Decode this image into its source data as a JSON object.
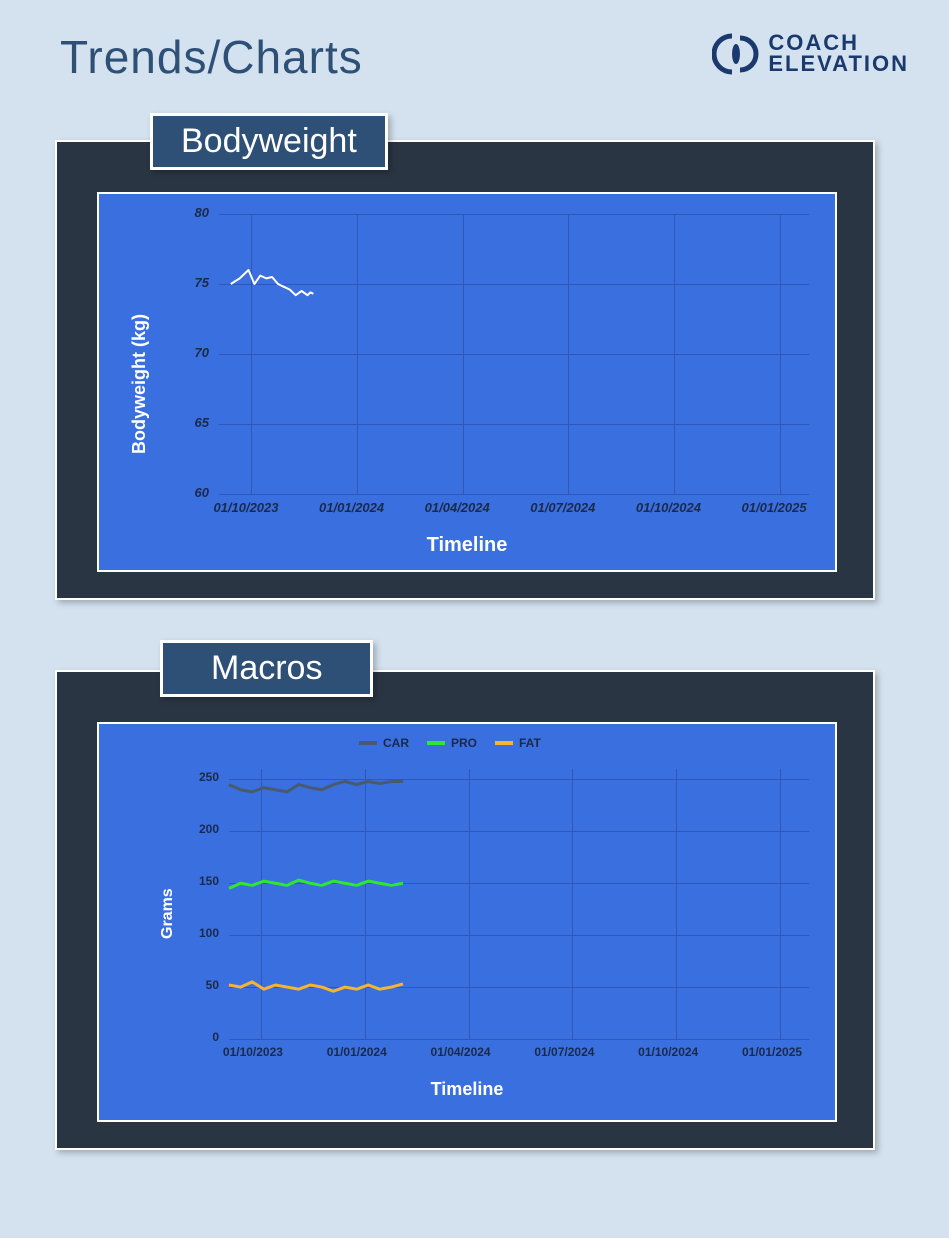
{
  "page": {
    "title": "Trends/Charts",
    "background": "#d4e2f0"
  },
  "logo": {
    "line1": "COACH",
    "line2": "ELEVATION",
    "text_color": "#1a3a6e",
    "icon_color": "#1a3a6e"
  },
  "panel_style": {
    "bg": "#2a3544",
    "border": "#ffffff",
    "title_bg": "#2e5077",
    "title_border": "#ffffff",
    "title_color": "#ffffff",
    "title_fontsize": 34
  },
  "charts": {
    "bodyweight": {
      "title": "Bodyweight",
      "type": "line",
      "plot_bg": "#3a6fe0",
      "grid_color": "#2f57b8",
      "axis_label_color": "#ffffff",
      "tick_color": "#1a2a4a",
      "ylabel": "Bodyweight (kg)",
      "xlabel": "Timeline",
      "ylabel_fontsize": 18,
      "xlabel_fontsize": 20,
      "tick_fontsize": 13,
      "ylim": [
        60,
        80
      ],
      "ytick_step": 5,
      "yticks": [
        60,
        65,
        70,
        75,
        80
      ],
      "x_range": [
        "01/09/2023",
        "01/03/2025"
      ],
      "xticks": [
        "01/10/2023",
        "01/01/2024",
        "01/04/2024",
        "01/07/2024",
        "01/10/2024",
        "01/01/2025"
      ],
      "series": [
        {
          "name": "bodyweight",
          "color": "#ffffff",
          "line_width": 2,
          "x": [
            0.02,
            0.035,
            0.05,
            0.06,
            0.07,
            0.08,
            0.09,
            0.1,
            0.11,
            0.12,
            0.13,
            0.14,
            0.15,
            0.155,
            0.16
          ],
          "y": [
            75.0,
            75.4,
            76.0,
            75.0,
            75.6,
            75.4,
            75.5,
            75.0,
            74.8,
            74.6,
            74.2,
            74.5,
            74.2,
            74.4,
            74.3
          ]
        }
      ]
    },
    "macros": {
      "title": "Macros",
      "type": "line",
      "plot_bg": "#3a6fe0",
      "grid_color": "#2f57b8",
      "axis_label_color": "#ffffff",
      "tick_color": "#1a2a4a",
      "ylabel": "Grams",
      "xlabel": "Timeline",
      "ylabel_fontsize": 16,
      "xlabel_fontsize": 18,
      "tick_fontsize": 12,
      "ylim": [
        0,
        260
      ],
      "yticks": [
        0,
        50,
        100,
        150,
        200,
        250
      ],
      "x_range": [
        "01/09/2023",
        "01/03/2025"
      ],
      "xticks": [
        "01/10/2023",
        "01/01/2024",
        "01/04/2024",
        "01/07/2024",
        "01/10/2024",
        "01/01/2025"
      ],
      "legend": [
        {
          "label": "CAR",
          "color": "#4a5a6e"
        },
        {
          "label": "PRO",
          "color": "#2ee82e"
        },
        {
          "label": "FAT",
          "color": "#f5b52e"
        }
      ],
      "series": [
        {
          "name": "CAR",
          "color": "#4a5a6e",
          "line_width": 3,
          "x": [
            0.0,
            0.02,
            0.04,
            0.06,
            0.08,
            0.1,
            0.12,
            0.14,
            0.16,
            0.18,
            0.2,
            0.22,
            0.24,
            0.26,
            0.28,
            0.3
          ],
          "y": [
            245,
            240,
            238,
            242,
            240,
            238,
            245,
            242,
            240,
            245,
            248,
            245,
            248,
            246,
            248,
            248
          ]
        },
        {
          "name": "PRO",
          "color": "#2ee82e",
          "line_width": 3,
          "x": [
            0.0,
            0.02,
            0.04,
            0.06,
            0.08,
            0.1,
            0.12,
            0.14,
            0.16,
            0.18,
            0.2,
            0.22,
            0.24,
            0.26,
            0.28,
            0.3
          ],
          "y": [
            145,
            150,
            148,
            152,
            150,
            148,
            153,
            150,
            148,
            152,
            150,
            148,
            152,
            150,
            148,
            150
          ]
        },
        {
          "name": "FAT",
          "color": "#f5b52e",
          "line_width": 3,
          "x": [
            0.0,
            0.02,
            0.04,
            0.06,
            0.08,
            0.1,
            0.12,
            0.14,
            0.16,
            0.18,
            0.2,
            0.22,
            0.24,
            0.26,
            0.28,
            0.3
          ],
          "y": [
            52,
            50,
            55,
            48,
            52,
            50,
            48,
            52,
            50,
            46,
            50,
            48,
            52,
            48,
            50,
            53
          ]
        }
      ]
    }
  }
}
